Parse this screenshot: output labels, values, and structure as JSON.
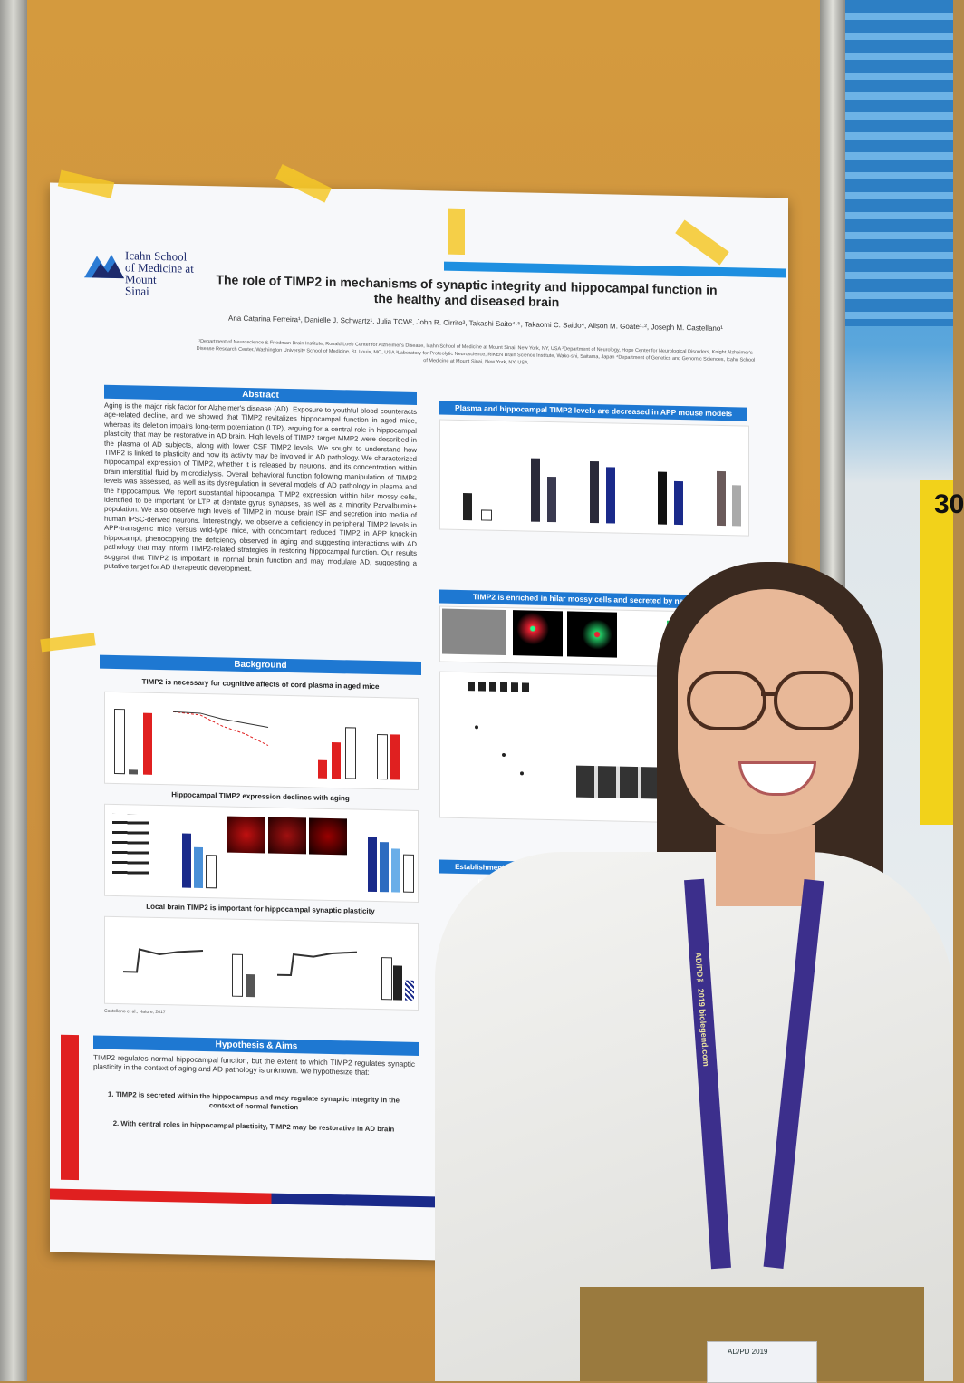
{
  "poster": {
    "logo_lines": "Icahn School\nof Medicine at\nMount\nSinai",
    "title": "The role of TIMP2 in mechanisms of synaptic integrity and hippocampal function in the healthy and diseased brain",
    "authors": "Ana Catarina Ferreira¹, Danielle J. Schwartz¹, Julia TCW², John R. Cirrito³, Takashi Saito⁴·⁵, Takaomi C. Saido⁴, Alison M. Goate¹·², Joseph M. Castellano¹",
    "affiliations": "¹Department of Neuroscience & Friedman Brain Institute, Ronald Loeb Center for Alzheimer's Disease, Icahn School of Medicine at Mount Sinai, New York, NY, USA ²Department of Neurology, Hope Center for Neurological Disorders, Knight Alzheimer's Disease Research Center, Washington University School of Medicine, St. Louis, MO, USA ³Laboratory for Proteolytic Neuroscience, RIKEN Brain Science Institute, Wako-shi, Saitama, Japan ⁴Department of Genetics and Genomic Sciences, Icahn School of Medicine at Mount Sinai, New York, NY, USA",
    "abstract_head": "Abstract",
    "abstract": "Aging is the major risk factor for Alzheimer's disease (AD). Exposure to youthful blood counteracts age-related decline, and we showed that TIMP2 revitalizes hippocampal function in aged mice, whereas its deletion impairs long-term potentiation (LTP), arguing for a central role in hippocampal plasticity that may be restorative in AD brain. High levels of TIMP2 target MMP2 were described in the plasma of AD subjects, along with lower CSF TIMP2 levels. We sought to understand how TIMP2 is linked to plasticity and how its activity may be involved in AD pathology. We characterized hippocampal expression of TIMP2, whether it is released by neurons, and its concentration within brain interstitial fluid by microdialysis. Overall behavioral function following manipulation of TIMP2 levels was assessed, as well as its dysregulation in several models of AD pathology in plasma and the hippocampus. We report substantial hippocampal TIMP2 expression within hilar mossy cells, identified to be important for LTP at dentate gyrus synapses, as well as a minority Parvalbumin+ population. We also observe high levels of TIMP2 in mouse brain ISF and secretion into media of human iPSC-derived neurons. Interestingly, we observe a deficiency in peripheral TIMP2 levels in APP-transgenic mice versus wild-type mice, with concomitant reduced TIMP2 in APP knock-in hippocampi, phenocopying the deficiency observed in aging and suggesting interactions with AD pathology that may inform TIMP2-related strategies in restoring hippocampal function. Our results suggest that TIMP2 is important in normal brain function and may modulate AD, suggesting a putative target for AD therapeutic development.",
    "background_head": "Background",
    "bg_sub1": "TIMP2 is necessary for cognitive affects of cord plasma in aged mice",
    "bg_sub2": "Hippocampal TIMP2 expression declines with aging",
    "bg_sub3": "Local brain TIMP2 is important for hippocampal synaptic plasticity",
    "bg_cite": "Castellano et al., Nature, 2017",
    "hyp_head": "Hypothesis & Aims",
    "hyp_intro": "TIMP2 regulates normal hippocampal function, but the extent to which TIMP2 regulates synaptic plasticity in the context of aging and AD pathology is unknown. We hypothesize that:",
    "aim1": "1. TIMP2 is secreted within the hippocampus and may regulate synaptic integrity in the context of normal function",
    "aim2": "2. With central roles in hippocampal plasticity, TIMP2 may be restorative in AD brain",
    "plasma_head": "Plasma and hippocampal TIMP2 levels are decreased in APP mouse models",
    "hilar_head": "TIMP2 is enriched in hilar mossy cells and secreted by neurons",
    "viral_head": "Establishment of viral-mediated"
  },
  "booth_sign": "30",
  "badge_text": "AD/PD 2019",
  "lanyard_text": "AD/PD™ 2019   biolegend.com",
  "colors": {
    "accent": "#1e78d2",
    "red": "#e02020",
    "navy": "#1a2a8a"
  }
}
